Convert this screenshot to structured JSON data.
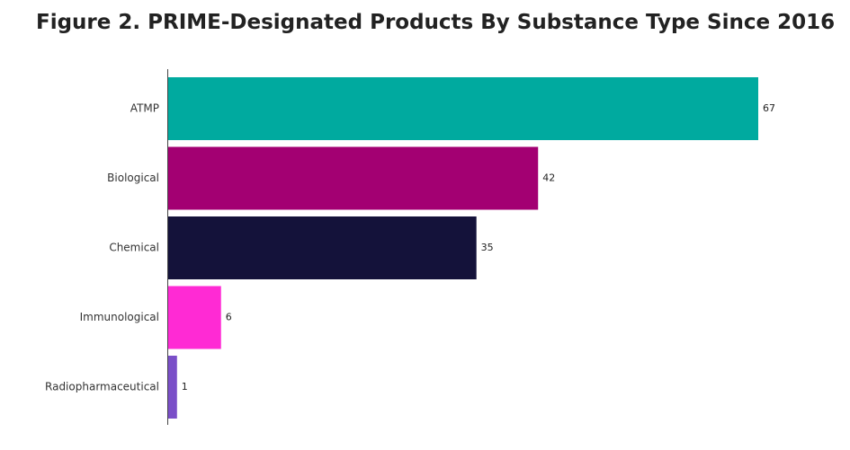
{
  "chart_data": {
    "type": "bar",
    "orientation": "horizontal",
    "title": "Figure 2. PRIME-Designated Products By Substance Type Since 2016",
    "xlabel": "",
    "ylabel": "",
    "xlim": [
      0,
      67
    ],
    "grid": false,
    "legend": "none",
    "categories": [
      "ATMP",
      "Biological",
      "Chemical",
      "Immunological",
      "Radiopharmaceutical"
    ],
    "values": [
      67,
      42,
      35,
      6,
      1
    ],
    "colors": [
      "#00AA9F",
      "#A30072",
      "#14123A",
      "#FF2AD4",
      "#7A4FC8"
    ],
    "value_labels": [
      "67",
      "42",
      "35",
      "6",
      "1"
    ]
  }
}
